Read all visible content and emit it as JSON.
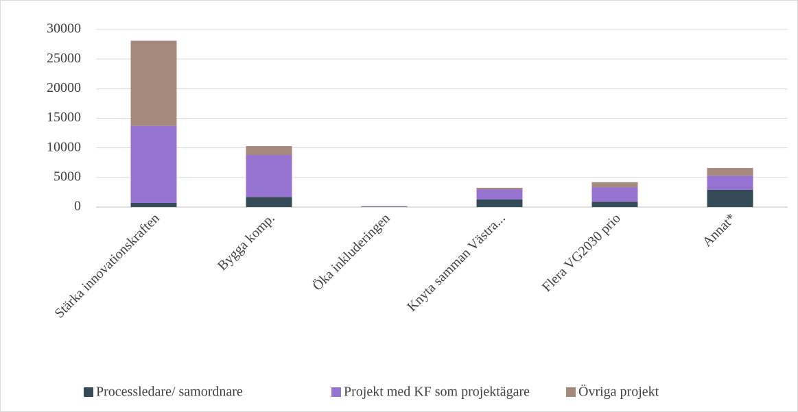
{
  "chart_data": {
    "type": "bar",
    "stacked": true,
    "categories": [
      "Stärka innovationskraften",
      "Bygga komp.",
      "Öka inkluderingen",
      "Knyta samman Västra...",
      "Flera VG2030 prio",
      "Annat*"
    ],
    "series": [
      {
        "name": "Processledare/ samordnare",
        "color": "#344a56",
        "values": [
          700,
          1700,
          50,
          1300,
          900,
          2900
        ]
      },
      {
        "name": "Projekt med KF som projektägare",
        "color": "#9673d0",
        "values": [
          13000,
          7100,
          50,
          1700,
          2450,
          2400
        ]
      },
      {
        "name": "Övriga projekt",
        "color": "#a4887c",
        "values": [
          14400,
          1500,
          50,
          250,
          850,
          1300
        ]
      }
    ],
    "ylim": [
      0,
      30000
    ],
    "yticks": [
      0,
      5000,
      10000,
      15000,
      20000,
      25000,
      30000
    ],
    "grid": true,
    "legend": "bottom"
  }
}
